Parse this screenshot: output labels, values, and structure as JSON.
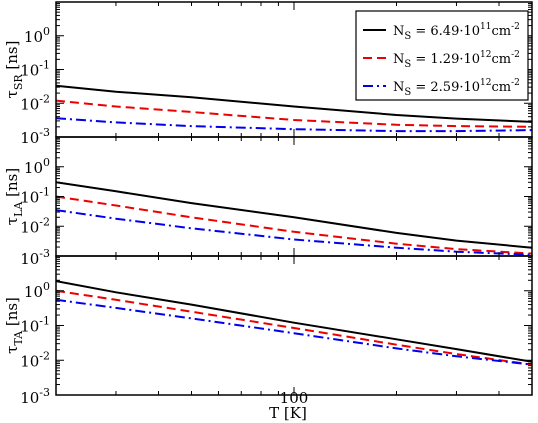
{
  "chart_data": {
    "type": "line",
    "xlabel": "T [K]",
    "x_scale": "log",
    "xlim": [
      20,
      500
    ],
    "x_tick_labels": [
      {
        "value": 100,
        "label": "100"
      }
    ],
    "legend_position": "top-right",
    "legend": [
      {
        "main": "N",
        "sub": "S",
        "mid": " = 6.49·10",
        "sup1": "11",
        "unit": "cm",
        "sup2": "-2",
        "color": "#000000",
        "dash": "solid"
      },
      {
        "main": "N",
        "sub": "S",
        "mid": " = 1.29·10",
        "sup1": "12",
        "unit": "cm",
        "sup2": "-2",
        "color": "#ee0000",
        "dash": "dashed"
      },
      {
        "main": "N",
        "sub": "S",
        "mid": " = 2.59·10",
        "sup1": "12",
        "unit": "cm",
        "sup2": "-2",
        "color": "#0000ee",
        "dash": "dash-dot"
      }
    ],
    "panels": [
      {
        "ylabel_main": "τ",
        "ylabel_sub": "SR",
        "ylabel_unit": " [ns]",
        "y_scale": "log",
        "ylim": [
          0.001,
          10
        ],
        "y_tick_labels": [
          {
            "base": "10",
            "exp": "0",
            "value": 1
          },
          {
            "base": "10",
            "exp": "-1",
            "value": 0.1
          },
          {
            "base": "10",
            "exp": "-2",
            "value": 0.01
          },
          {
            "base": "10",
            "exp": "-3",
            "value": 0.001
          }
        ],
        "series": [
          {
            "legend_index": 0,
            "x": [
              20,
              30,
              50,
              100,
              200,
              300,
              500
            ],
            "y": [
              0.033,
              0.022,
              0.015,
              0.008,
              0.0045,
              0.0035,
              0.0028
            ]
          },
          {
            "legend_index": 1,
            "x": [
              20,
              30,
              50,
              100,
              200,
              300,
              500
            ],
            "y": [
              0.012,
              0.008,
              0.0055,
              0.0032,
              0.0023,
              0.0021,
              0.002
            ]
          },
          {
            "legend_index": 2,
            "x": [
              20,
              30,
              50,
              100,
              200,
              300,
              500
            ],
            "y": [
              0.0036,
              0.0027,
              0.0021,
              0.0017,
              0.0015,
              0.0015,
              0.0016
            ]
          }
        ]
      },
      {
        "ylabel_main": "τ",
        "ylabel_sub": "LA",
        "ylabel_unit": " [ns]",
        "y_scale": "log",
        "ylim": [
          0.001,
          10
        ],
        "y_tick_labels": [
          {
            "base": "10",
            "exp": "0",
            "value": 1
          },
          {
            "base": "10",
            "exp": "-1",
            "value": 0.1
          },
          {
            "base": "10",
            "exp": "-2",
            "value": 0.01
          },
          {
            "base": "10",
            "exp": "-3",
            "value": 0.001
          }
        ],
        "series": [
          {
            "legend_index": 0,
            "x": [
              20,
              30,
              50,
              100,
              200,
              300,
              500
            ],
            "y": [
              0.3,
              0.15,
              0.06,
              0.02,
              0.006,
              0.0033,
              0.0019
            ]
          },
          {
            "legend_index": 1,
            "x": [
              20,
              30,
              50,
              100,
              200,
              300,
              500
            ],
            "y": [
              0.1,
              0.05,
              0.02,
              0.0065,
              0.0026,
              0.0017,
              0.0012
            ]
          },
          {
            "legend_index": 2,
            "x": [
              20,
              30,
              50,
              100,
              200,
              300,
              500
            ],
            "y": [
              0.035,
              0.018,
              0.0085,
              0.0036,
              0.0019,
              0.0014,
              0.0011
            ]
          }
        ]
      },
      {
        "ylabel_main": "τ",
        "ylabel_sub": "TA",
        "ylabel_unit": " [ns]",
        "y_scale": "log",
        "ylim": [
          0.001,
          10
        ],
        "y_tick_labels": [
          {
            "base": "10",
            "exp": "0",
            "value": 1
          },
          {
            "base": "10",
            "exp": "-1",
            "value": 0.1
          },
          {
            "base": "10",
            "exp": "-2",
            "value": 0.01
          },
          {
            "base": "10",
            "exp": "-3",
            "value": 0.001
          }
        ],
        "series": [
          {
            "legend_index": 0,
            "x": [
              20,
              30,
              50,
              100,
              200,
              300,
              500
            ],
            "y": [
              1.9,
              0.9,
              0.4,
              0.12,
              0.04,
              0.021,
              0.009
            ]
          },
          {
            "legend_index": 1,
            "x": [
              20,
              30,
              50,
              100,
              200,
              300,
              500
            ],
            "y": [
              1.0,
              0.55,
              0.25,
              0.085,
              0.028,
              0.015,
              0.0075
            ]
          },
          {
            "legend_index": 2,
            "x": [
              20,
              30,
              50,
              100,
              200,
              300,
              500
            ],
            "y": [
              0.55,
              0.32,
              0.16,
              0.06,
              0.022,
              0.013,
              0.0075
            ]
          }
        ]
      }
    ]
  }
}
